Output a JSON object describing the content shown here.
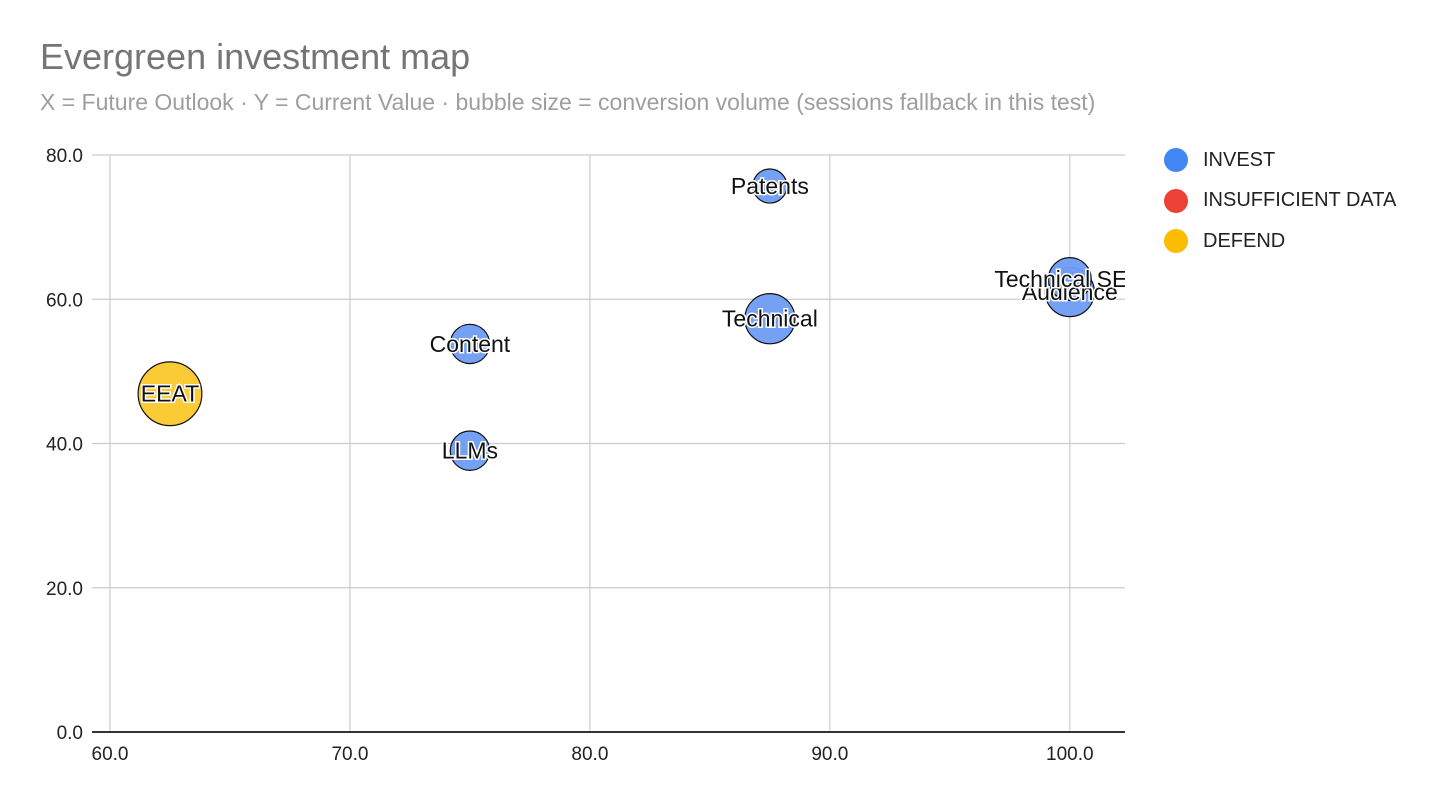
{
  "title": "Evergreen investment map",
  "subtitle": "X = Future Outlook · Y = Current Value · bubble size = conversion volume (sessions fallback in this test)",
  "legend": [
    {
      "label": "INVEST",
      "color": "#4285f4"
    },
    {
      "label": "INSUFFICIENT DATA",
      "color": "#ea4335"
    },
    {
      "label": "DEFEND",
      "color": "#fbbc04"
    }
  ],
  "chart_data": {
    "type": "scatter",
    "title": "Evergreen investment map",
    "subtitle": "X = Future Outlook · Y = Current Value · bubble size = conversion volume (sessions fallback in this test)",
    "xlabel": "",
    "ylabel": "",
    "xlim": [
      60,
      102.3
    ],
    "ylim": [
      0,
      80
    ],
    "x_ticks": [
      "60.0",
      "70.0",
      "80.0",
      "90.0",
      "100.0"
    ],
    "y_ticks": [
      "0.0",
      "20.0",
      "40.0",
      "60.0",
      "80.0"
    ],
    "grid": true,
    "legend_position": "right",
    "bubble_size_meaning": "conversion volume",
    "series": [
      {
        "name": "INVEST",
        "color": "#4285f4"
      },
      {
        "name": "INSUFFICIENT DATA",
        "color": "#ea4335"
      },
      {
        "name": "DEFEND",
        "color": "#fbbc04"
      }
    ],
    "points": [
      {
        "label": "EEAT",
        "x": 62.5,
        "y": 46.9,
        "size": 2.1,
        "series": "DEFEND"
      },
      {
        "label": "Content",
        "x": 75.0,
        "y": 53.8,
        "size": 0.8,
        "series": "INVEST"
      },
      {
        "label": "LLMs",
        "x": 75.0,
        "y": 39.0,
        "size": 0.8,
        "series": "INVEST"
      },
      {
        "label": "Patents",
        "x": 87.5,
        "y": 75.7,
        "size": 0.6,
        "series": "INVEST"
      },
      {
        "label": "Technical",
        "x": 87.5,
        "y": 57.3,
        "size": 1.3,
        "series": "INVEST"
      },
      {
        "label": "Audience",
        "x": 100.0,
        "y": 61.0,
        "size": 1.25,
        "series": "INVEST"
      },
      {
        "label": "Technical SEO",
        "x": 100.0,
        "y": 62.8,
        "size": 0.95,
        "series": "INVEST"
      }
    ]
  }
}
